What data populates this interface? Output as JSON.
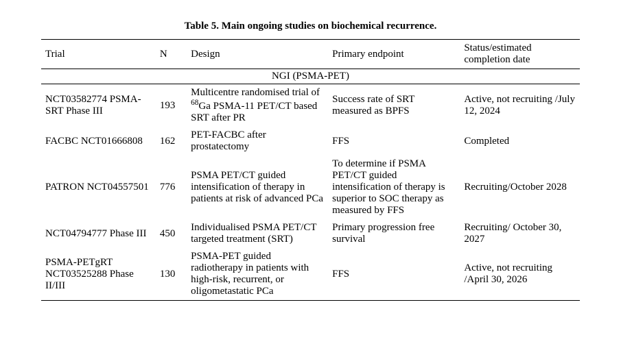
{
  "caption": "Table 5. Main ongoing studies on biochemical recurrence.",
  "headers": {
    "trial": "Trial",
    "n": "N",
    "design": "Design",
    "endpoint": "Primary endpoint",
    "status": "Status/estimated completion date"
  },
  "section": "NGI (PSMA-PET)",
  "rows": [
    {
      "trial": "NCT03582774 PSMA-SRT Phase III",
      "n": "193",
      "design_html": "Multicentre randomised trial of <sup>68</sup>Ga PSMA-11 PET/CT based SRT after PR",
      "endpoint": "Success rate of SRT measured as BPFS",
      "status": "Active, not recruiting /July 12, 2024"
    },
    {
      "trial": "FACBC NCT01666808",
      "n": "162",
      "design_html": "PET-FACBC after prostatectomy",
      "endpoint": "FFS",
      "status": "Completed"
    },
    {
      "trial": "PATRON NCT04557501",
      "n": "776",
      "design_html": "PSMA PET/CT guided intensification of therapy in patients at risk of advanced PCa",
      "endpoint": "To determine if PSMA PET/CT guided intensification of therapy is superior to SOC therapy as measured by FFS",
      "status": "Recruiting/October 2028"
    },
    {
      "trial": "NCT04794777 Phase III",
      "n": "450",
      "design_html": "Individualised PSMA PET/CT targeted treatment (SRT)",
      "endpoint": "Primary progression free survival",
      "status": "Recruiting/ October 30, 2027"
    },
    {
      "trial": "PSMA-PETgRT NCT03525288 Phase II/III",
      "n": "130",
      "design_html": "PSMA-PET guided radiotherapy in patients with high-risk, recurrent, or oligometastatic PCa",
      "endpoint": "FFS",
      "status": "Active, not recruiting /April 30, 2026"
    }
  ]
}
